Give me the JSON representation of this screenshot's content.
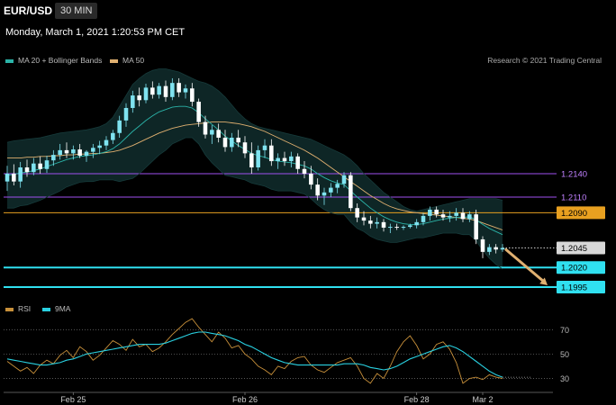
{
  "header": {
    "symbol": "EUR/USD",
    "timeframe": "30 MIN",
    "datetime": "Monday, March 1, 2021 1:20:53 PM CET",
    "credit": "Research © 2021 Trading Central"
  },
  "legend": {
    "price": [
      {
        "name": "MA 20 + Bollinger Bands",
        "color": "#2bb3a8"
      },
      {
        "name": "MA 50",
        "color": "#e0b070"
      }
    ],
    "rsi": [
      {
        "name": "RSI",
        "color": "#c8903a"
      },
      {
        "name": "9MA",
        "color": "#29d0e0"
      }
    ]
  },
  "colors": {
    "candle_up": "#7fe3f0",
    "candle_down": "#ffffff",
    "ma20": "#2bb3a8",
    "ma50": "#e0b070",
    "band_fill": "#0f2a2a",
    "arrow": "#e0b070"
  },
  "chart_data": {
    "type": "candlestick",
    "symbol": "EUR/USD",
    "interval": "30 MIN",
    "x_labels": [
      "Feb 25",
      "Feb 26",
      "Feb 28",
      "Mar 2"
    ],
    "y_range": [
      1.198,
      1.227
    ],
    "candles": [
      [
        1.213,
        1.215,
        1.2118,
        1.214
      ],
      [
        1.214,
        1.2152,
        1.2125,
        1.213
      ],
      [
        1.213,
        1.2155,
        1.2122,
        1.2148
      ],
      [
        1.2148,
        1.2158,
        1.2136,
        1.2142
      ],
      [
        1.2142,
        1.216,
        1.2138,
        1.2153
      ],
      [
        1.2153,
        1.2162,
        1.214,
        1.2146
      ],
      [
        1.2146,
        1.2163,
        1.2141,
        1.2157
      ],
      [
        1.2157,
        1.217,
        1.215,
        1.2164
      ],
      [
        1.2164,
        1.2178,
        1.2158,
        1.217
      ],
      [
        1.217,
        1.218,
        1.216,
        1.2166
      ],
      [
        1.2166,
        1.2176,
        1.2158,
        1.2171
      ],
      [
        1.2171,
        1.2178,
        1.216,
        1.2163
      ],
      [
        1.2163,
        1.217,
        1.2155,
        1.2168
      ],
      [
        1.2168,
        1.2178,
        1.216,
        1.2173
      ],
      [
        1.2173,
        1.2182,
        1.2165,
        1.2176
      ],
      [
        1.2176,
        1.2188,
        1.217,
        1.2183
      ],
      [
        1.2183,
        1.2196,
        1.2178,
        1.2192
      ],
      [
        1.2192,
        1.2214,
        1.2186,
        1.2208
      ],
      [
        1.2208,
        1.223,
        1.22,
        1.2224
      ],
      [
        1.2224,
        1.2246,
        1.2218,
        1.224
      ],
      [
        1.224,
        1.225,
        1.2226,
        1.2234
      ],
      [
        1.2234,
        1.2255,
        1.223,
        1.225
      ],
      [
        1.225,
        1.2258,
        1.2236,
        1.2241
      ],
      [
        1.2241,
        1.2256,
        1.2236,
        1.2252
      ],
      [
        1.2252,
        1.2259,
        1.2232,
        1.2238
      ],
      [
        1.2238,
        1.2262,
        1.2234,
        1.2256
      ],
      [
        1.2256,
        1.2262,
        1.2238,
        1.2244
      ],
      [
        1.2244,
        1.2254,
        1.2236,
        1.2249
      ],
      [
        1.2249,
        1.2256,
        1.2226,
        1.2232
      ],
      [
        1.2232,
        1.2236,
        1.22,
        1.2206
      ],
      [
        1.2206,
        1.2214,
        1.2185,
        1.219
      ],
      [
        1.219,
        1.2202,
        1.2178,
        1.2196
      ],
      [
        1.2196,
        1.2204,
        1.218,
        1.2186
      ],
      [
        1.2186,
        1.2196,
        1.2168,
        1.2174
      ],
      [
        1.2174,
        1.2192,
        1.2168,
        1.2186
      ],
      [
        1.2186,
        1.2196,
        1.2174,
        1.218
      ],
      [
        1.218,
        1.2188,
        1.216,
        1.2166
      ],
      [
        1.2166,
        1.218,
        1.214,
        1.2148
      ],
      [
        1.2148,
        1.2176,
        1.2144,
        1.217
      ],
      [
        1.217,
        1.2184,
        1.216,
        1.2176
      ],
      [
        1.2176,
        1.2184,
        1.215,
        1.2156
      ],
      [
        1.2156,
        1.2166,
        1.2146,
        1.216
      ],
      [
        1.216,
        1.2168,
        1.215,
        1.2156
      ],
      [
        1.2156,
        1.2168,
        1.2148,
        1.2162
      ],
      [
        1.2162,
        1.2166,
        1.214,
        1.2146
      ],
      [
        1.2146,
        1.2156,
        1.2134,
        1.214
      ],
      [
        1.214,
        1.215,
        1.212,
        1.2126
      ],
      [
        1.2126,
        1.2134,
        1.2106,
        1.2112
      ],
      [
        1.2112,
        1.2122,
        1.21,
        1.2116
      ],
      [
        1.2116,
        1.2128,
        1.211,
        1.2122
      ],
      [
        1.2122,
        1.2132,
        1.2115,
        1.2127
      ],
      [
        1.2127,
        1.2142,
        1.2122,
        1.2138
      ],
      [
        1.2138,
        1.2142,
        1.2092,
        1.2096
      ],
      [
        1.2096,
        1.2102,
        1.2078,
        1.2084
      ],
      [
        1.2084,
        1.2092,
        1.2074,
        1.208
      ],
      [
        1.208,
        1.2086,
        1.207,
        1.2076
      ],
      [
        1.2076,
        1.2084,
        1.207,
        1.2078
      ],
      [
        1.2078,
        1.2082,
        1.2066,
        1.2071
      ],
      [
        1.2071,
        1.2076,
        1.2064,
        1.2072
      ],
      [
        1.2072,
        1.2076,
        1.2068,
        1.2071
      ],
      [
        1.2071,
        1.2074,
        1.2068,
        1.2072
      ],
      [
        1.2072,
        1.2076,
        1.207,
        1.2074
      ],
      [
        1.2074,
        1.2082,
        1.207,
        1.2078
      ],
      [
        1.2078,
        1.209,
        1.2074,
        1.2086
      ],
      [
        1.2086,
        1.2098,
        1.208,
        1.2094
      ],
      [
        1.2094,
        1.2098,
        1.2084,
        1.2088
      ],
      [
        1.2088,
        1.2094,
        1.208,
        1.2084
      ],
      [
        1.2084,
        1.2092,
        1.2078,
        1.2086
      ],
      [
        1.2086,
        1.2096,
        1.208,
        1.209
      ],
      [
        1.209,
        1.2096,
        1.2078,
        1.2082
      ],
      [
        1.2082,
        1.2092,
        1.2078,
        1.2088
      ],
      [
        1.2088,
        1.2094,
        1.205,
        1.2056
      ],
      [
        1.2056,
        1.206,
        1.2032,
        1.204
      ],
      [
        1.204,
        1.205,
        1.2036,
        1.2046
      ],
      [
        1.2046,
        1.205,
        1.2038,
        1.2043
      ],
      [
        1.2043,
        1.205,
        1.204,
        1.2045
      ]
    ],
    "ma20": [
      1.2138,
      1.2139,
      1.2141,
      1.2142,
      1.2144,
      1.2146,
      1.2149,
      1.2152,
      1.2155,
      1.2158,
      1.216,
      1.2162,
      1.2163,
      1.2164,
      1.2166,
      1.2168,
      1.2172,
      1.2178,
      1.2186,
      1.2194,
      1.2201,
      1.2208,
      1.2214,
      1.2219,
      1.2222,
      1.2225,
      1.2226,
      1.2226,
      1.2224,
      1.2218,
      1.221,
      1.2203,
      1.2196,
      1.2188,
      1.2182,
      1.2176,
      1.2171,
      1.2166,
      1.2163,
      1.2161,
      1.2158,
      1.2156,
      1.2155,
      1.2154,
      1.2152,
      1.215,
      1.2146,
      1.214,
      1.2135,
      1.2131,
      1.2128,
      1.2126,
      1.2118,
      1.211,
      1.2103,
      1.2096,
      1.209,
      1.2085,
      1.2081,
      1.2078,
      1.2076,
      1.2075,
      1.2075,
      1.2076,
      1.2078,
      1.208,
      1.2082,
      1.2083,
      1.2084,
      1.2084,
      1.2085,
      1.2081,
      1.2075,
      1.207,
      1.2066,
      1.2062
    ],
    "bb_upper": [
      1.218,
      1.2182,
      1.2183,
      1.2184,
      1.2185,
      1.2186,
      1.2188,
      1.219,
      1.2192,
      1.2193,
      1.2194,
      1.2195,
      1.2196,
      1.2198,
      1.22,
      1.2204,
      1.2212,
      1.2226,
      1.224,
      1.2254,
      1.2262,
      1.2268,
      1.2272,
      1.2274,
      1.2274,
      1.2272,
      1.227,
      1.2266,
      1.2262,
      1.2258,
      1.2256,
      1.2252,
      1.2246,
      1.2238,
      1.2228,
      1.2218,
      1.221,
      1.2204,
      1.22,
      1.2198,
      1.2196,
      1.2194,
      1.2192,
      1.219,
      1.2188,
      1.2186,
      1.2184,
      1.218,
      1.2176,
      1.2172,
      1.2168,
      1.2164,
      1.2158,
      1.215,
      1.214,
      1.2132,
      1.2124,
      1.2116,
      1.211,
      1.2104,
      1.2098,
      1.2094,
      1.2092,
      1.2094,
      1.2096,
      1.2098,
      1.21,
      1.2102,
      1.2104,
      1.2106,
      1.2108,
      1.2108,
      1.2108,
      1.2108,
      1.2108,
      1.2106
    ],
    "bb_lower": [
      1.2096,
      1.2096,
      1.2099,
      1.21,
      1.2103,
      1.2106,
      1.211,
      1.2114,
      1.2118,
      1.2123,
      1.2126,
      1.2129,
      1.213,
      1.213,
      1.2132,
      1.2132,
      1.2132,
      1.213,
      1.2132,
      1.2134,
      1.214,
      1.2148,
      1.2156,
      1.2164,
      1.217,
      1.2178,
      1.2182,
      1.2186,
      1.2186,
      1.2178,
      1.2164,
      1.2154,
      1.2146,
      1.2138,
      1.2136,
      1.2134,
      1.2132,
      1.2128,
      1.2126,
      1.2124,
      1.212,
      1.2118,
      1.2118,
      1.2118,
      1.2116,
      1.2114,
      1.2108,
      1.21,
      1.2094,
      1.209,
      1.2088,
      1.2088,
      1.2078,
      1.207,
      1.2066,
      1.206,
      1.2056,
      1.2054,
      1.2052,
      1.2052,
      1.2054,
      1.2056,
      1.2058,
      1.2058,
      1.206,
      1.2062,
      1.2064,
      1.2064,
      1.2064,
      1.2062,
      1.2062,
      1.2054,
      1.2042,
      1.2032,
      1.2024,
      1.2018
    ],
    "ma50": [
      1.216,
      1.216,
      1.216,
      1.2161,
      1.2161,
      1.2162,
      1.2162,
      1.2163,
      1.2163,
      1.2164,
      1.2164,
      1.2165,
      1.2165,
      1.2166,
      1.2166,
      1.2167,
      1.2168,
      1.217,
      1.2173,
      1.2176,
      1.218,
      1.2184,
      1.2188,
      1.2192,
      1.2195,
      1.2198,
      1.22,
      1.2202,
      1.2203,
      1.2204,
      1.2205,
      1.2206,
      1.2206,
      1.2206,
      1.2205,
      1.2204,
      1.2202,
      1.22,
      1.2197,
      1.2194,
      1.219,
      1.2186,
      1.2182,
      1.2178,
      1.2174,
      1.217,
      1.2165,
      1.216,
      1.2154,
      1.2148,
      1.2142,
      1.2136,
      1.213,
      1.2124,
      1.2118,
      1.2112,
      1.2107,
      1.2102,
      1.2098,
      1.2095,
      1.2093,
      1.2091,
      1.209,
      1.2089,
      1.2088,
      1.2087,
      1.2086,
      1.2085,
      1.2084,
      1.2083,
      1.2082,
      1.208,
      1.2077,
      1.2074,
      1.2071,
      1.2068
    ],
    "levels": [
      {
        "label": "1.2140",
        "value": 1.214,
        "kind": "resistance",
        "color": "#a050f0",
        "label_bg": "#000000",
        "label_color": "#c080ff"
      },
      {
        "label": "1.2110",
        "value": 1.211,
        "kind": "resistance",
        "color": "#a050f0",
        "label_bg": "#000000",
        "label_color": "#c080ff"
      },
      {
        "label": "1.2090",
        "value": 1.209,
        "kind": "pivot",
        "color": "#e8a020",
        "label_bg": "#e8a020",
        "label_color": "#000000"
      },
      {
        "label": "1.2045",
        "value": 1.2045,
        "kind": "last",
        "color": "#cccccc",
        "label_bg": "#d8d8d8",
        "label_color": "#000000"
      },
      {
        "label": "1.2020",
        "value": 1.202,
        "kind": "support",
        "color": "#30e0f0",
        "label_bg": "#30e0f0",
        "label_color": "#000000"
      },
      {
        "label": "1.1995",
        "value": 1.1995,
        "kind": "support",
        "color": "#30e0f0",
        "label_bg": "#30e0f0",
        "label_color": "#000000"
      }
    ],
    "forecast_arrow": {
      "from_value": 1.2045,
      "to_value": 1.1995
    },
    "rsi": {
      "ticks": [
        "70",
        "50",
        "30"
      ],
      "y_range": [
        20,
        85
      ],
      "values": [
        44,
        40,
        36,
        39,
        34,
        41,
        45,
        42,
        49,
        53,
        47,
        56,
        52,
        45,
        49,
        55,
        61,
        58,
        53,
        62,
        56,
        58,
        52,
        55,
        60,
        66,
        71,
        76,
        79,
        72,
        66,
        60,
        68,
        63,
        55,
        57,
        50,
        46,
        40,
        37,
        33,
        40,
        38,
        44,
        47,
        48,
        41,
        37,
        35,
        39,
        43,
        45,
        47,
        40,
        30,
        26,
        34,
        30,
        40,
        52,
        60,
        65,
        57,
        46,
        50,
        58,
        60,
        54,
        43,
        26,
        30,
        31,
        29,
        33,
        31,
        30
      ],
      "ma9": [
        46,
        45,
        44,
        43,
        42,
        41,
        41,
        42,
        43,
        45,
        46,
        48,
        50,
        51,
        52,
        53,
        54,
        55,
        56,
        57,
        58,
        58,
        58,
        58,
        59,
        61,
        63,
        65,
        67,
        68,
        68,
        67,
        66,
        65,
        63,
        61,
        58,
        56,
        53,
        50,
        47,
        45,
        43,
        42,
        41,
        41,
        41,
        41,
        41,
        41,
        41,
        42,
        42,
        42,
        41,
        39,
        38,
        37,
        38,
        40,
        43,
        46,
        48,
        50,
        52,
        54,
        56,
        57,
        55,
        52,
        48,
        44,
        40,
        36,
        33,
        31
      ]
    }
  }
}
